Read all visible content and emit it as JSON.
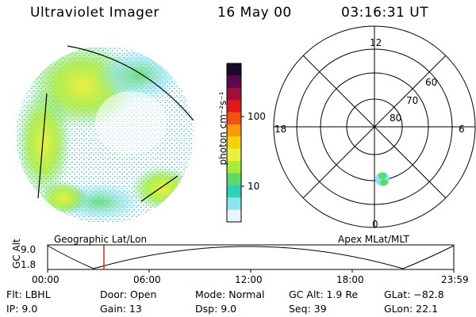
{
  "header": {
    "instrument": "Ultraviolet Imager",
    "date": "16 May 00",
    "time": "03:16:31 UT"
  },
  "colorbar": {
    "label": "photon cm⁻²s⁻¹",
    "ticks": [
      "100",
      "10"
    ],
    "colors": [
      "#1a0a2a",
      "#5a0a4a",
      "#a0103a",
      "#e01a1a",
      "#f05010",
      "#f59a0a",
      "#f5d210",
      "#e8f040",
      "#a8ec3a",
      "#5fd96a",
      "#2fd2b6",
      "#8ee2ef",
      "#e6f6fb"
    ]
  },
  "polar_grid": {
    "mlt_labels": [
      "12",
      "18",
      "6",
      "0"
    ],
    "lat_labels": [
      "60",
      "70",
      "80"
    ]
  },
  "labels": {
    "left_panel": "Geographic Lat/Lon",
    "right_panel": "Apex MLat/MLT"
  },
  "timeline": {
    "axis_label": "GC Alt",
    "y_ticks": [
      "9.0",
      "1.8"
    ],
    "x_ticks": [
      "00:00",
      "06:00",
      "12:00",
      "18:00",
      "23:59"
    ],
    "marker_color": "#d21414"
  },
  "info": {
    "filter": "Flt: LBHL",
    "ip": "IP:  9.0",
    "door": "Door: Open",
    "gain": "Gain: 13",
    "mode": "Mode: Normal",
    "dsp": "Dsp:     9.0",
    "gc_alt": "GC Alt: 1.9 Re",
    "seq": "Seq: 39",
    "glat": "GLat: −82.8",
    "glon": "GLon:  22.1"
  }
}
